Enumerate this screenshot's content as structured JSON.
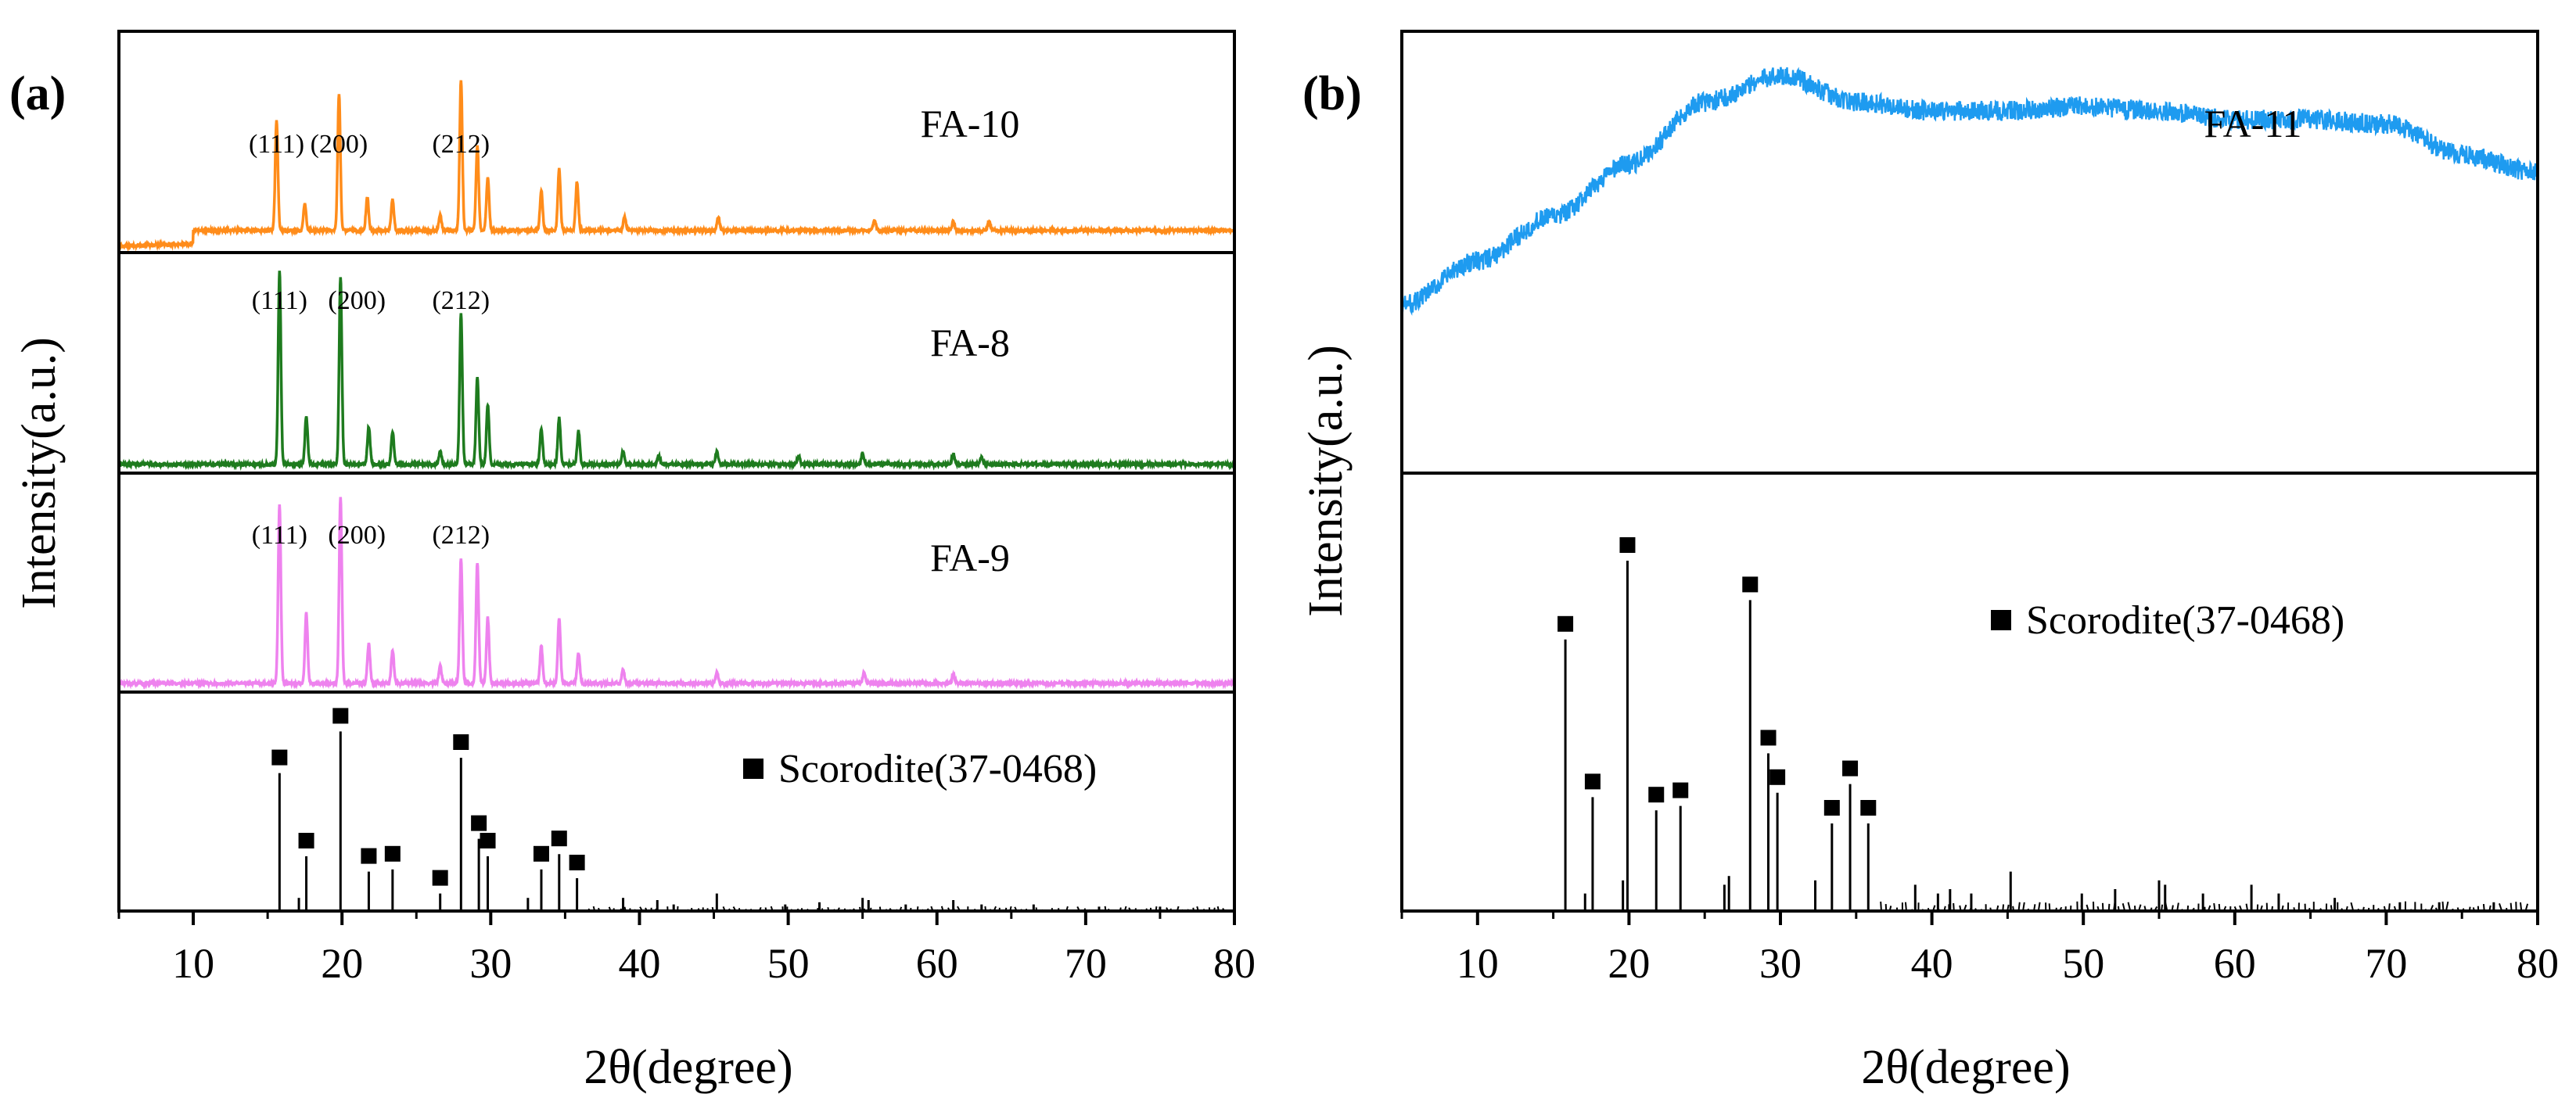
{
  "chart_data": [
    {
      "type": "line",
      "panel_label": "(a)",
      "xlabel": "2θ(degree)",
      "ylabel": "Intensity(a.u.)",
      "xlim": [
        5,
        80
      ],
      "xticks": [
        "10",
        "20",
        "30",
        "40",
        "50",
        "60",
        "70",
        "80"
      ],
      "xtick_values": [
        10,
        20,
        30,
        40,
        50,
        60,
        70,
        80
      ],
      "subplots": [
        {
          "name": "FA-10",
          "label": "FA-10",
          "color": "#FF8C1A",
          "baseline": 0.1,
          "peaks": [
            {
              "x": 15.6,
              "h": 0.5
            },
            {
              "x": 17.5,
              "h": 0.12
            },
            {
              "x": 19.8,
              "h": 0.62
            },
            {
              "x": 21.7,
              "h": 0.15
            },
            {
              "x": 23.4,
              "h": 0.14
            },
            {
              "x": 26.6,
              "h": 0.07
            },
            {
              "x": 28.0,
              "h": 0.68
            },
            {
              "x": 29.1,
              "h": 0.38
            },
            {
              "x": 29.8,
              "h": 0.24
            },
            {
              "x": 33.4,
              "h": 0.18
            },
            {
              "x": 34.6,
              "h": 0.28
            },
            {
              "x": 35.8,
              "h": 0.22
            },
            {
              "x": 39.0,
              "h": 0.06
            },
            {
              "x": 45.3,
              "h": 0.06
            },
            {
              "x": 55.8,
              "h": 0.05
            },
            {
              "x": 61.1,
              "h": 0.04
            },
            {
              "x": 63.5,
              "h": 0.04
            }
          ],
          "hkl": [
            {
              "label": "(111)",
              "x": 15.6
            },
            {
              "label": "(200)",
              "x": 19.8
            },
            {
              "label": "(212)",
              "x": 28.0
            }
          ]
        },
        {
          "name": "FA-8",
          "label": "FA-8",
          "color": "#1E7B1E",
          "baseline": 0.04,
          "peaks": [
            {
              "x": 15.8,
              "h": 0.88
            },
            {
              "x": 17.6,
              "h": 0.22
            },
            {
              "x": 19.9,
              "h": 0.85
            },
            {
              "x": 21.8,
              "h": 0.17
            },
            {
              "x": 23.4,
              "h": 0.15
            },
            {
              "x": 26.6,
              "h": 0.06
            },
            {
              "x": 28.0,
              "h": 0.68
            },
            {
              "x": 29.1,
              "h": 0.4
            },
            {
              "x": 29.8,
              "h": 0.27
            },
            {
              "x": 33.4,
              "h": 0.16
            },
            {
              "x": 34.6,
              "h": 0.21
            },
            {
              "x": 35.9,
              "h": 0.15
            },
            {
              "x": 38.9,
              "h": 0.06
            },
            {
              "x": 41.3,
              "h": 0.04
            },
            {
              "x": 45.2,
              "h": 0.06
            },
            {
              "x": 50.7,
              "h": 0.04
            },
            {
              "x": 55.0,
              "h": 0.05
            },
            {
              "x": 61.1,
              "h": 0.05
            },
            {
              "x": 63.0,
              "h": 0.03
            }
          ],
          "hkl": [
            {
              "label": "(111)",
              "x": 15.8
            },
            {
              "label": "(200)",
              "x": 21.0
            },
            {
              "label": "(212)",
              "x": 28.0
            }
          ]
        },
        {
          "name": "FA-9",
          "label": "FA-9",
          "color": "#EE82EE",
          "baseline": 0.04,
          "peaks": [
            {
              "x": 15.8,
              "h": 0.82
            },
            {
              "x": 17.6,
              "h": 0.32
            },
            {
              "x": 19.9,
              "h": 0.85
            },
            {
              "x": 21.8,
              "h": 0.18
            },
            {
              "x": 23.4,
              "h": 0.15
            },
            {
              "x": 26.6,
              "h": 0.08
            },
            {
              "x": 28.0,
              "h": 0.57
            },
            {
              "x": 29.1,
              "h": 0.55
            },
            {
              "x": 29.8,
              "h": 0.3
            },
            {
              "x": 33.4,
              "h": 0.17
            },
            {
              "x": 34.6,
              "h": 0.3
            },
            {
              "x": 35.9,
              "h": 0.14
            },
            {
              "x": 38.9,
              "h": 0.06
            },
            {
              "x": 45.2,
              "h": 0.05
            },
            {
              "x": 55.1,
              "h": 0.05
            },
            {
              "x": 61.1,
              "h": 0.04
            }
          ],
          "hkl": [
            {
              "label": "(111)",
              "x": 15.8
            },
            {
              "label": "(200)",
              "x": 21.0
            },
            {
              "label": "(212)",
              "x": 28.0
            }
          ]
        }
      ],
      "reference": {
        "legend": "Scorodite(37-0468)",
        "sticks": [
          {
            "x": 15.8,
            "h": 0.63,
            "marker": true
          },
          {
            "x": 17.1,
            "h": 0.06,
            "marker": false
          },
          {
            "x": 17.6,
            "h": 0.25,
            "marker": true
          },
          {
            "x": 19.9,
            "h": 0.82,
            "marker": true
          },
          {
            "x": 21.8,
            "h": 0.18,
            "marker": true
          },
          {
            "x": 23.4,
            "h": 0.19,
            "marker": true
          },
          {
            "x": 26.6,
            "h": 0.08,
            "marker": true
          },
          {
            "x": 28.0,
            "h": 0.7,
            "marker": true
          },
          {
            "x": 29.2,
            "h": 0.33,
            "marker": true
          },
          {
            "x": 29.8,
            "h": 0.25,
            "marker": true
          },
          {
            "x": 32.5,
            "h": 0.06,
            "marker": false
          },
          {
            "x": 33.4,
            "h": 0.19,
            "marker": true
          },
          {
            "x": 34.6,
            "h": 0.26,
            "marker": true
          },
          {
            "x": 35.8,
            "h": 0.15,
            "marker": true
          },
          {
            "x": 38.9,
            "h": 0.06,
            "marker": false
          },
          {
            "x": 41.2,
            "h": 0.05,
            "marker": false
          },
          {
            "x": 42.3,
            "h": 0.03,
            "marker": false
          },
          {
            "x": 45.2,
            "h": 0.08,
            "marker": false
          },
          {
            "x": 49.8,
            "h": 0.03,
            "marker": false
          },
          {
            "x": 52.1,
            "h": 0.04,
            "marker": false
          },
          {
            "x": 55.0,
            "h": 0.06,
            "marker": false
          },
          {
            "x": 55.4,
            "h": 0.05,
            "marker": false
          },
          {
            "x": 57.9,
            "h": 0.03,
            "marker": false
          },
          {
            "x": 61.1,
            "h": 0.05,
            "marker": false
          },
          {
            "x": 63.0,
            "h": 0.03,
            "marker": false
          },
          {
            "x": 66.5,
            "h": 0.03,
            "marker": false
          },
          {
            "x": 70.9,
            "h": 0.02,
            "marker": false
          },
          {
            "x": 75.0,
            "h": 0.02,
            "marker": false
          }
        ]
      }
    },
    {
      "type": "line",
      "panel_label": "(b)",
      "xlabel": "2θ(degree)",
      "ylabel": "Intensity(a.u.)",
      "xlim": [
        5,
        80
      ],
      "xticks": [
        "10",
        "20",
        "30",
        "40",
        "50",
        "60",
        "70",
        "80"
      ],
      "xtick_values": [
        10,
        20,
        30,
        40,
        50,
        60,
        70,
        80
      ],
      "subplots": [
        {
          "name": "FA-11",
          "label": "FA-11",
          "color": "#1E9BF0",
          "amorphous_profile": [
            [
              5,
              0.38
            ],
            [
              10,
              0.48
            ],
            [
              15,
              0.58
            ],
            [
              20,
              0.7
            ],
            [
              25,
              0.84
            ],
            [
              30,
              0.9
            ],
            [
              35,
              0.84
            ],
            [
              40,
              0.82
            ],
            [
              45,
              0.82
            ],
            [
              50,
              0.83
            ],
            [
              55,
              0.82
            ],
            [
              60,
              0.8
            ],
            [
              65,
              0.8
            ],
            [
              70,
              0.79
            ],
            [
              75,
              0.72
            ],
            [
              80,
              0.68
            ]
          ]
        }
      ],
      "reference": {
        "legend": "Scorodite(37-0468)",
        "sticks": [
          {
            "x": 15.8,
            "h": 0.62,
            "marker": true
          },
          {
            "x": 17.1,
            "h": 0.04,
            "marker": false
          },
          {
            "x": 17.6,
            "h": 0.26,
            "marker": true
          },
          {
            "x": 19.6,
            "h": 0.07,
            "marker": false
          },
          {
            "x": 19.9,
            "h": 0.8,
            "marker": true
          },
          {
            "x": 21.8,
            "h": 0.23,
            "marker": true
          },
          {
            "x": 23.4,
            "h": 0.24,
            "marker": true
          },
          {
            "x": 26.3,
            "h": 0.06,
            "marker": false
          },
          {
            "x": 26.6,
            "h": 0.08,
            "marker": false
          },
          {
            "x": 28.0,
            "h": 0.71,
            "marker": true
          },
          {
            "x": 29.2,
            "h": 0.36,
            "marker": true
          },
          {
            "x": 29.8,
            "h": 0.27,
            "marker": true
          },
          {
            "x": 32.3,
            "h": 0.07,
            "marker": false
          },
          {
            "x": 33.4,
            "h": 0.2,
            "marker": true
          },
          {
            "x": 34.6,
            "h": 0.29,
            "marker": true
          },
          {
            "x": 35.8,
            "h": 0.2,
            "marker": true
          },
          {
            "x": 38.9,
            "h": 0.06,
            "marker": false
          },
          {
            "x": 40.4,
            "h": 0.04,
            "marker": false
          },
          {
            "x": 41.2,
            "h": 0.05,
            "marker": false
          },
          {
            "x": 42.6,
            "h": 0.04,
            "marker": false
          },
          {
            "x": 45.2,
            "h": 0.09,
            "marker": false
          },
          {
            "x": 49.9,
            "h": 0.04,
            "marker": false
          },
          {
            "x": 52.1,
            "h": 0.05,
            "marker": false
          },
          {
            "x": 55.0,
            "h": 0.07,
            "marker": false
          },
          {
            "x": 55.4,
            "h": 0.06,
            "marker": false
          },
          {
            "x": 57.9,
            "h": 0.04,
            "marker": false
          },
          {
            "x": 61.1,
            "h": 0.06,
            "marker": false
          },
          {
            "x": 62.9,
            "h": 0.04,
            "marker": false
          },
          {
            "x": 66.6,
            "h": 0.03,
            "marker": false
          },
          {
            "x": 70.9,
            "h": 0.02,
            "marker": false
          },
          {
            "x": 73.5,
            "h": 0.02,
            "marker": false
          },
          {
            "x": 77.1,
            "h": 0.02,
            "marker": false
          }
        ]
      }
    }
  ]
}
